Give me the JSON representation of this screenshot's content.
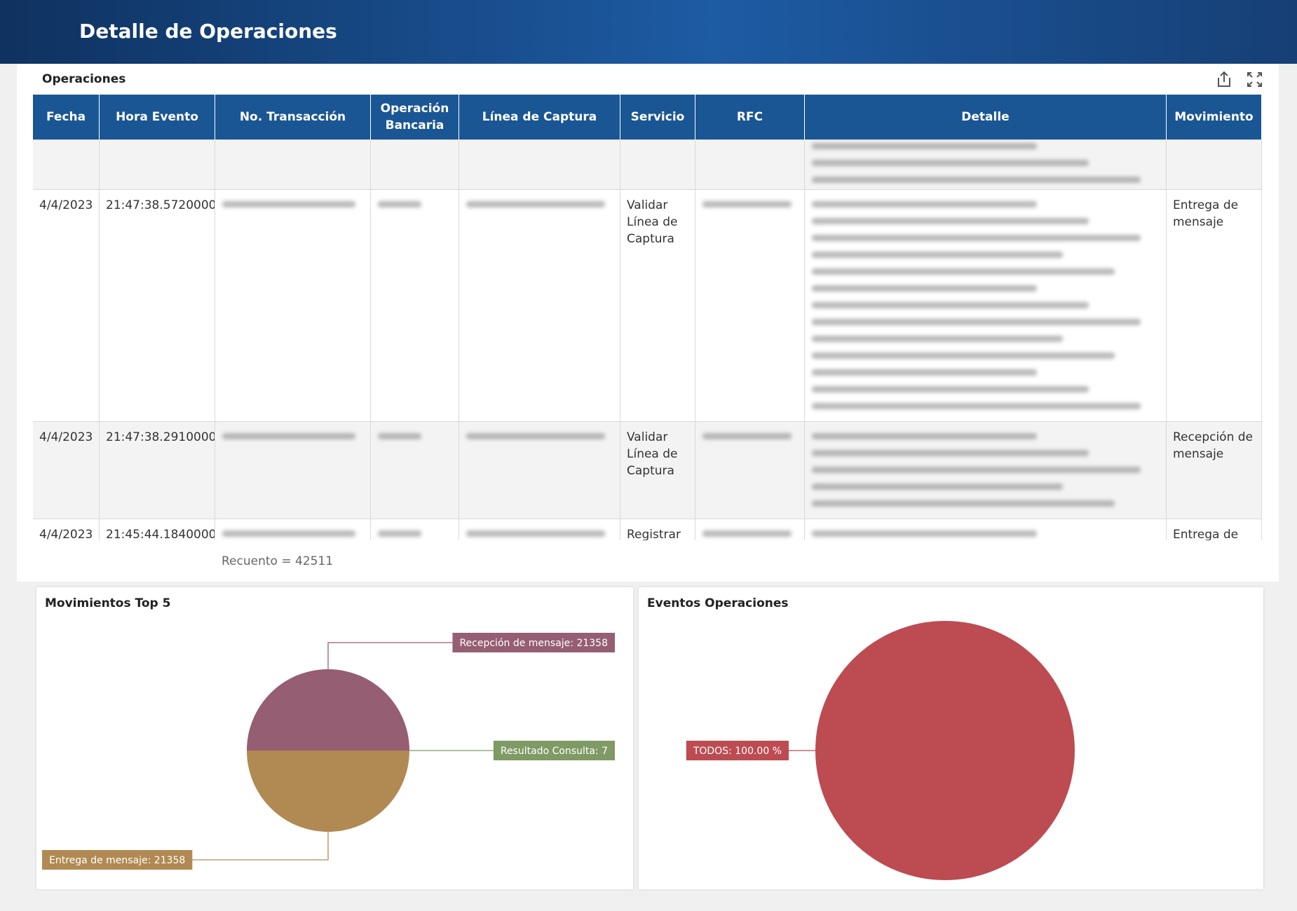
{
  "header": {
    "title": "Detalle de Operaciones"
  },
  "table": {
    "title": "Operaciones",
    "columns": [
      "Fecha",
      "Hora Evento",
      "No. Transacción",
      "Operación Bancaria",
      "Línea de Captura",
      "Servicio",
      "RFC",
      "Detalle",
      "Movimiento"
    ],
    "rows": [
      [
        null,
        null,
        null,
        null,
        null,
        null,
        null,
        null,
        null
      ],
      [
        "4/4/2023",
        "21:47:38.5720000",
        null,
        null,
        null,
        "Validar Línea de Captura",
        null,
        null,
        "Entrega de mensaje"
      ],
      [
        "4/4/2023",
        "21:47:38.2910000",
        null,
        null,
        null,
        "Validar Línea de Captura",
        null,
        null,
        "Recepción de mensaje"
      ],
      [
        "4/4/2023",
        "21:45:44.1840000",
        null,
        null,
        null,
        "Registrar",
        null,
        null,
        "Entrega de"
      ]
    ],
    "footer": "Recuento = 42511"
  },
  "chart_data": [
    {
      "type": "pie",
      "title": "Movimientos Top 5",
      "categories": [
        "Recepción de mensaje",
        "Resultado Consulta",
        "Entrega de mensaje"
      ],
      "values": [
        21358,
        7,
        21358
      ],
      "value_labels": [
        "Recepción de mensaje: 21358",
        "Resultado Consulta: 7",
        "Entrega de mensaje: 21358"
      ],
      "colors": [
        "#955e72",
        "#7f9a65",
        "#b08a52"
      ]
    },
    {
      "type": "pie",
      "title": "Eventos Operaciones",
      "categories": [
        "TODOS"
      ],
      "values": [
        100
      ],
      "value_labels": [
        "TODOS: 100.00 %"
      ],
      "colors": [
        "#bc4c52"
      ]
    }
  ]
}
